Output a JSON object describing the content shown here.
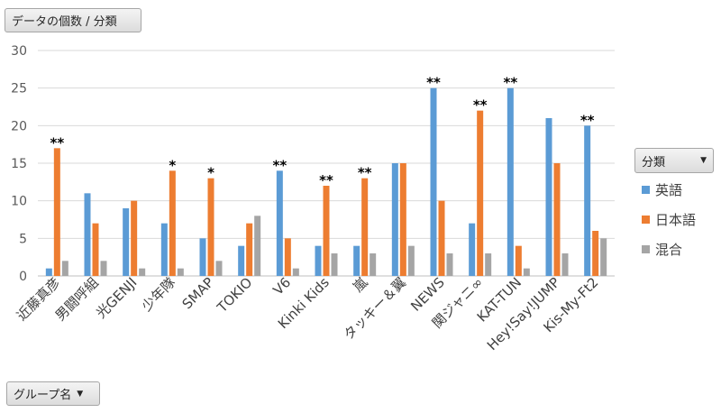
{
  "field_title": "データの個数 / 分類",
  "axis_field": "グループ名",
  "legend_field": "分類",
  "chart_data": {
    "type": "bar",
    "ylim": [
      0,
      30
    ],
    "yticks": [
      0,
      5,
      10,
      15,
      20,
      25,
      30
    ],
    "grid": true,
    "legend_position": "right",
    "categories": [
      "近藤真彦",
      "男闘呼組",
      "光GENJI",
      "少年隊",
      "SMAP",
      "TOKIO",
      "V6",
      "Kinki Kids",
      "嵐",
      "タッキー＆翼",
      "NEWS",
      "関ジャニ∞",
      "KAT-TUN",
      "Hey!Say!JUMP",
      "Kis-My-Ft2"
    ],
    "series": [
      {
        "name": "英語",
        "color": "#5b9bd5",
        "values": [
          1,
          11,
          9,
          7,
          5,
          4,
          14,
          4,
          4,
          15,
          25,
          7,
          25,
          21,
          20
        ]
      },
      {
        "name": "日本語",
        "color": "#ed7d31",
        "values": [
          17,
          7,
          10,
          14,
          13,
          7,
          5,
          12,
          13,
          15,
          10,
          22,
          4,
          15,
          6
        ]
      },
      {
        "name": "混合",
        "color": "#a5a5a5",
        "values": [
          2,
          2,
          1,
          1,
          2,
          8,
          1,
          3,
          3,
          4,
          3,
          3,
          1,
          3,
          5
        ]
      }
    ],
    "annotations": [
      {
        "category": "近藤真彦",
        "series": "日本語",
        "text": "**"
      },
      {
        "category": "少年隊",
        "series": "日本語",
        "text": "*"
      },
      {
        "category": "SMAP",
        "series": "日本語",
        "text": "*"
      },
      {
        "category": "V6",
        "series": "英語",
        "text": "**"
      },
      {
        "category": "Kinki Kids",
        "series": "日本語",
        "text": "**"
      },
      {
        "category": "嵐",
        "series": "日本語",
        "text": "**"
      },
      {
        "category": "NEWS",
        "series": "英語",
        "text": "**"
      },
      {
        "category": "関ジャニ∞",
        "series": "日本語",
        "text": "**"
      },
      {
        "category": "KAT-TUN",
        "series": "英語",
        "text": "**"
      },
      {
        "category": "Kis-My-Ft2",
        "series": "英語",
        "text": "**"
      }
    ]
  }
}
